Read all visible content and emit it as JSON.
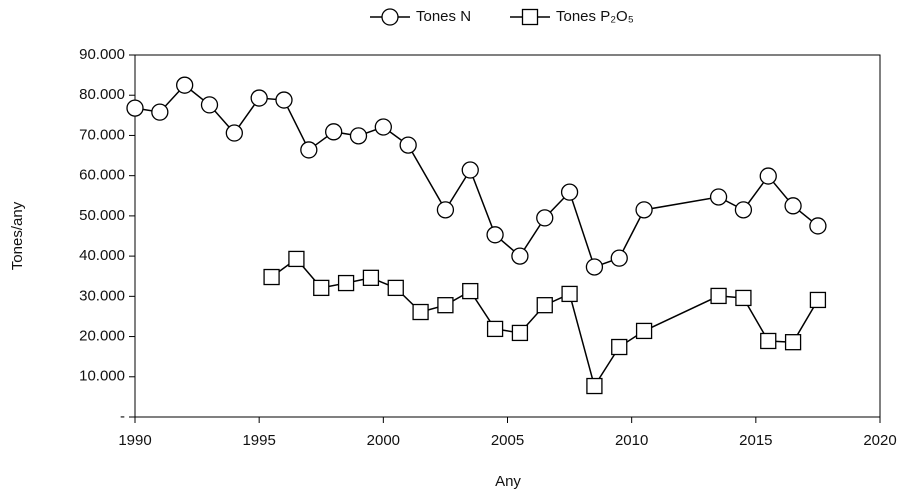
{
  "chart_data": {
    "type": "line",
    "x_label": "Any",
    "y_label": "Tones/any",
    "xlim": [
      1990,
      2020
    ],
    "xticks": [
      1990,
      1995,
      2000,
      2005,
      2010,
      2015,
      2020
    ],
    "ylim": [
      0,
      90000
    ],
    "yticks": [
      {
        "value": 0,
        "label": "-"
      },
      {
        "value": 10000,
        "label": "10.000"
      },
      {
        "value": 20000,
        "label": "20.000"
      },
      {
        "value": 30000,
        "label": "30.000"
      },
      {
        "value": 40000,
        "label": "40.000"
      },
      {
        "value": 50000,
        "label": "50.000"
      },
      {
        "value": 60000,
        "label": "60.000"
      },
      {
        "value": 70000,
        "label": "70.000"
      },
      {
        "value": 80000,
        "label": "80.000"
      },
      {
        "value": 90000,
        "label": "90.000"
      }
    ],
    "legend": "top",
    "series": [
      {
        "name": "Tones N",
        "marker": "circle",
        "color": "#000000",
        "x": [
          1990,
          1991,
          1992,
          1993,
          1994,
          1995,
          1996,
          1997,
          1998,
          1999,
          2000,
          2001,
          2002.5,
          2003.5,
          2004.5,
          2005.5,
          2006.5,
          2007.5,
          2008.5,
          2009.5,
          2010.5,
          2013.5,
          2014.5,
          2015.5,
          2016.5,
          2017.5
        ],
        "values": [
          76800,
          75800,
          82500,
          77600,
          70600,
          79300,
          78800,
          66400,
          70900,
          69900,
          72100,
          67600,
          51500,
          61400,
          45300,
          40000,
          49500,
          55900,
          37300,
          39500,
          51500,
          54700,
          51500,
          59900,
          52500,
          47500
        ]
      },
      {
        "name": "Tones P₂O₅",
        "marker": "square",
        "color": "#000000",
        "x": [
          1995.5,
          1996.5,
          1997.5,
          1998.5,
          1999.5,
          2000.5,
          2001.5,
          2002.5,
          2003.5,
          2004.5,
          2005.5,
          2006.5,
          2007.5,
          2008.5,
          2009.5,
          2010.5,
          2013.5,
          2014.5,
          2015.5,
          2016.5,
          2017.5
        ],
        "values": [
          34800,
          39300,
          32100,
          33300,
          34600,
          32100,
          26100,
          27800,
          31300,
          21900,
          20900,
          27800,
          30600,
          7700,
          17400,
          21400,
          30100,
          29600,
          18900,
          18600,
          29100
        ]
      }
    ]
  }
}
